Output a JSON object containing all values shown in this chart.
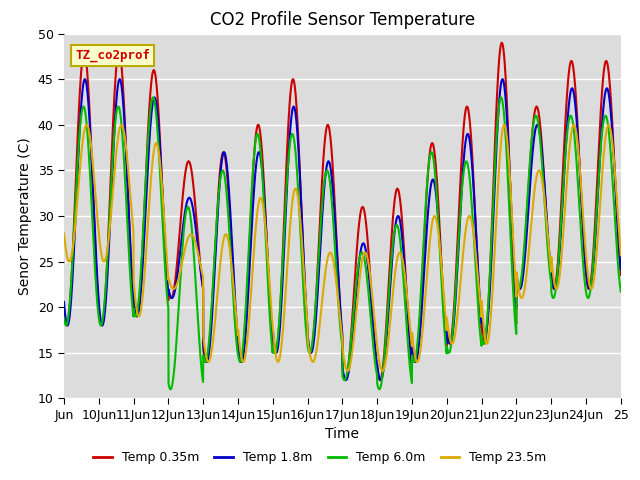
{
  "title": "CO2 Profile Sensor Temperature",
  "xlabel": "Time",
  "ylabel": "Senor Temperature (C)",
  "ylim": [
    10,
    50
  ],
  "xlim_days": [
    9,
    25
  ],
  "background_color": "#dcdcdc",
  "legend_label": "TZ_co2prof",
  "legend_box_color": "#ffffcc",
  "legend_box_edge": "#bbaa00",
  "series": {
    "temp_035m": {
      "label": "Temp 0.35m",
      "color": "#cc0000",
      "lw": 1.5
    },
    "temp_18m": {
      "label": "Temp 1.8m",
      "color": "#0000cc",
      "lw": 1.5
    },
    "temp_60m": {
      "label": "Temp 6.0m",
      "color": "#00bb00",
      "lw": 1.5
    },
    "temp_235m": {
      "label": "Temp 23.5m",
      "color": "#ddaa00",
      "lw": 1.5
    }
  },
  "tick_label_fontsize": 9,
  "axis_label_fontsize": 10,
  "title_fontsize": 12,
  "day_peaks_red": [
    48,
    46,
    36,
    37,
    40,
    45,
    40,
    31,
    33,
    38,
    42,
    49,
    42,
    47
  ],
  "day_troughs_red": [
    18,
    19,
    21,
    14,
    14,
    15,
    15,
    12,
    12,
    14,
    16,
    16,
    22,
    22
  ],
  "day_peaks_blue": [
    45,
    43,
    32,
    37,
    37,
    42,
    36,
    27,
    30,
    34,
    39,
    45,
    40,
    44
  ],
  "day_troughs_blue": [
    18,
    19,
    21,
    14,
    14,
    15,
    15,
    12,
    12,
    14,
    16,
    17,
    22,
    22
  ],
  "day_peaks_green": [
    42,
    43,
    31,
    35,
    39,
    39,
    35,
    26,
    29,
    37,
    36,
    43,
    41,
    41
  ],
  "day_troughs_green": [
    18,
    19,
    11,
    14,
    14,
    15,
    15,
    12,
    11,
    14,
    15,
    16,
    22,
    21
  ],
  "day_peaks_orange": [
    40,
    38,
    28,
    28,
    32,
    33,
    26,
    26,
    26,
    30,
    30,
    40,
    35,
    40
  ],
  "day_troughs_orange": [
    25,
    19,
    22,
    14,
    14,
    14,
    14,
    13,
    13,
    14,
    16,
    16,
    21,
    22
  ]
}
